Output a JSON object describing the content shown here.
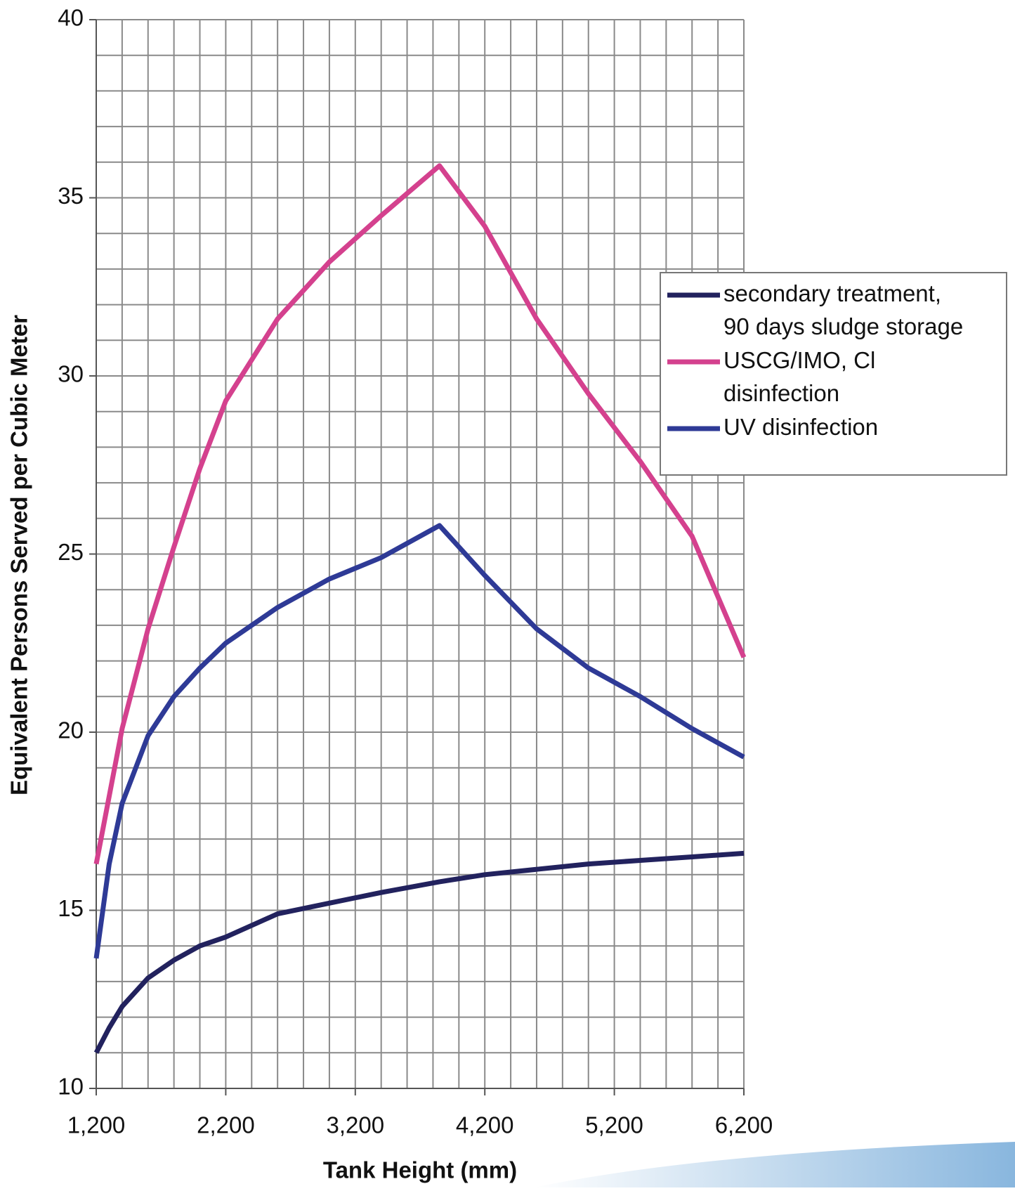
{
  "chart_data": {
    "type": "line",
    "x_label": "Tank Height (mm)",
    "y_label": "Equivalent Persons Served per Cubic Meter",
    "x": [
      1200,
      1300,
      1400,
      1600,
      1800,
      2000,
      2200,
      2600,
      3000,
      3400,
      3850,
      4200,
      4600,
      5000,
      5400,
      5800,
      6200
    ],
    "series": [
      {
        "name": "secondary treatment, 90 days sludge storage",
        "color": "#22225e",
        "values": [
          11.0,
          11.7,
          12.3,
          13.1,
          13.6,
          14.0,
          14.25,
          14.9,
          15.2,
          15.5,
          15.8,
          16.0,
          16.15,
          16.3,
          16.4,
          16.5,
          16.6
        ]
      },
      {
        "name": "USCG/IMO, Cl disinfection",
        "color": "#d4418e",
        "values": [
          16.3,
          18.2,
          20.1,
          22.9,
          25.2,
          27.4,
          29.3,
          31.6,
          33.2,
          34.5,
          35.9,
          34.2,
          31.6,
          29.5,
          27.6,
          25.5,
          22.1
        ]
      },
      {
        "name": "UV disinfection",
        "color": "#2e3a96",
        "values": [
          13.65,
          16.3,
          18.0,
          19.9,
          21.0,
          21.8,
          22.5,
          23.5,
          24.3,
          24.9,
          25.8,
          24.4,
          22.9,
          21.8,
          21.0,
          20.1,
          19.3
        ]
      }
    ],
    "xlim": [
      1200,
      6200
    ],
    "xticks": [
      {
        "value": 1200,
        "label": "1,200"
      },
      {
        "value": 2200,
        "label": "2,200"
      },
      {
        "value": 3200,
        "label": "3,200"
      },
      {
        "value": 4200,
        "label": "4,200"
      },
      {
        "value": 5200,
        "label": "5,200"
      },
      {
        "value": 6200,
        "label": "6,200"
      }
    ],
    "ylim": [
      10,
      40
    ],
    "yticks": [
      10,
      15,
      20,
      25,
      30,
      35,
      40
    ],
    "grid": true,
    "x_grid_step": 200,
    "y_grid_step": 1,
    "legend": "right"
  }
}
